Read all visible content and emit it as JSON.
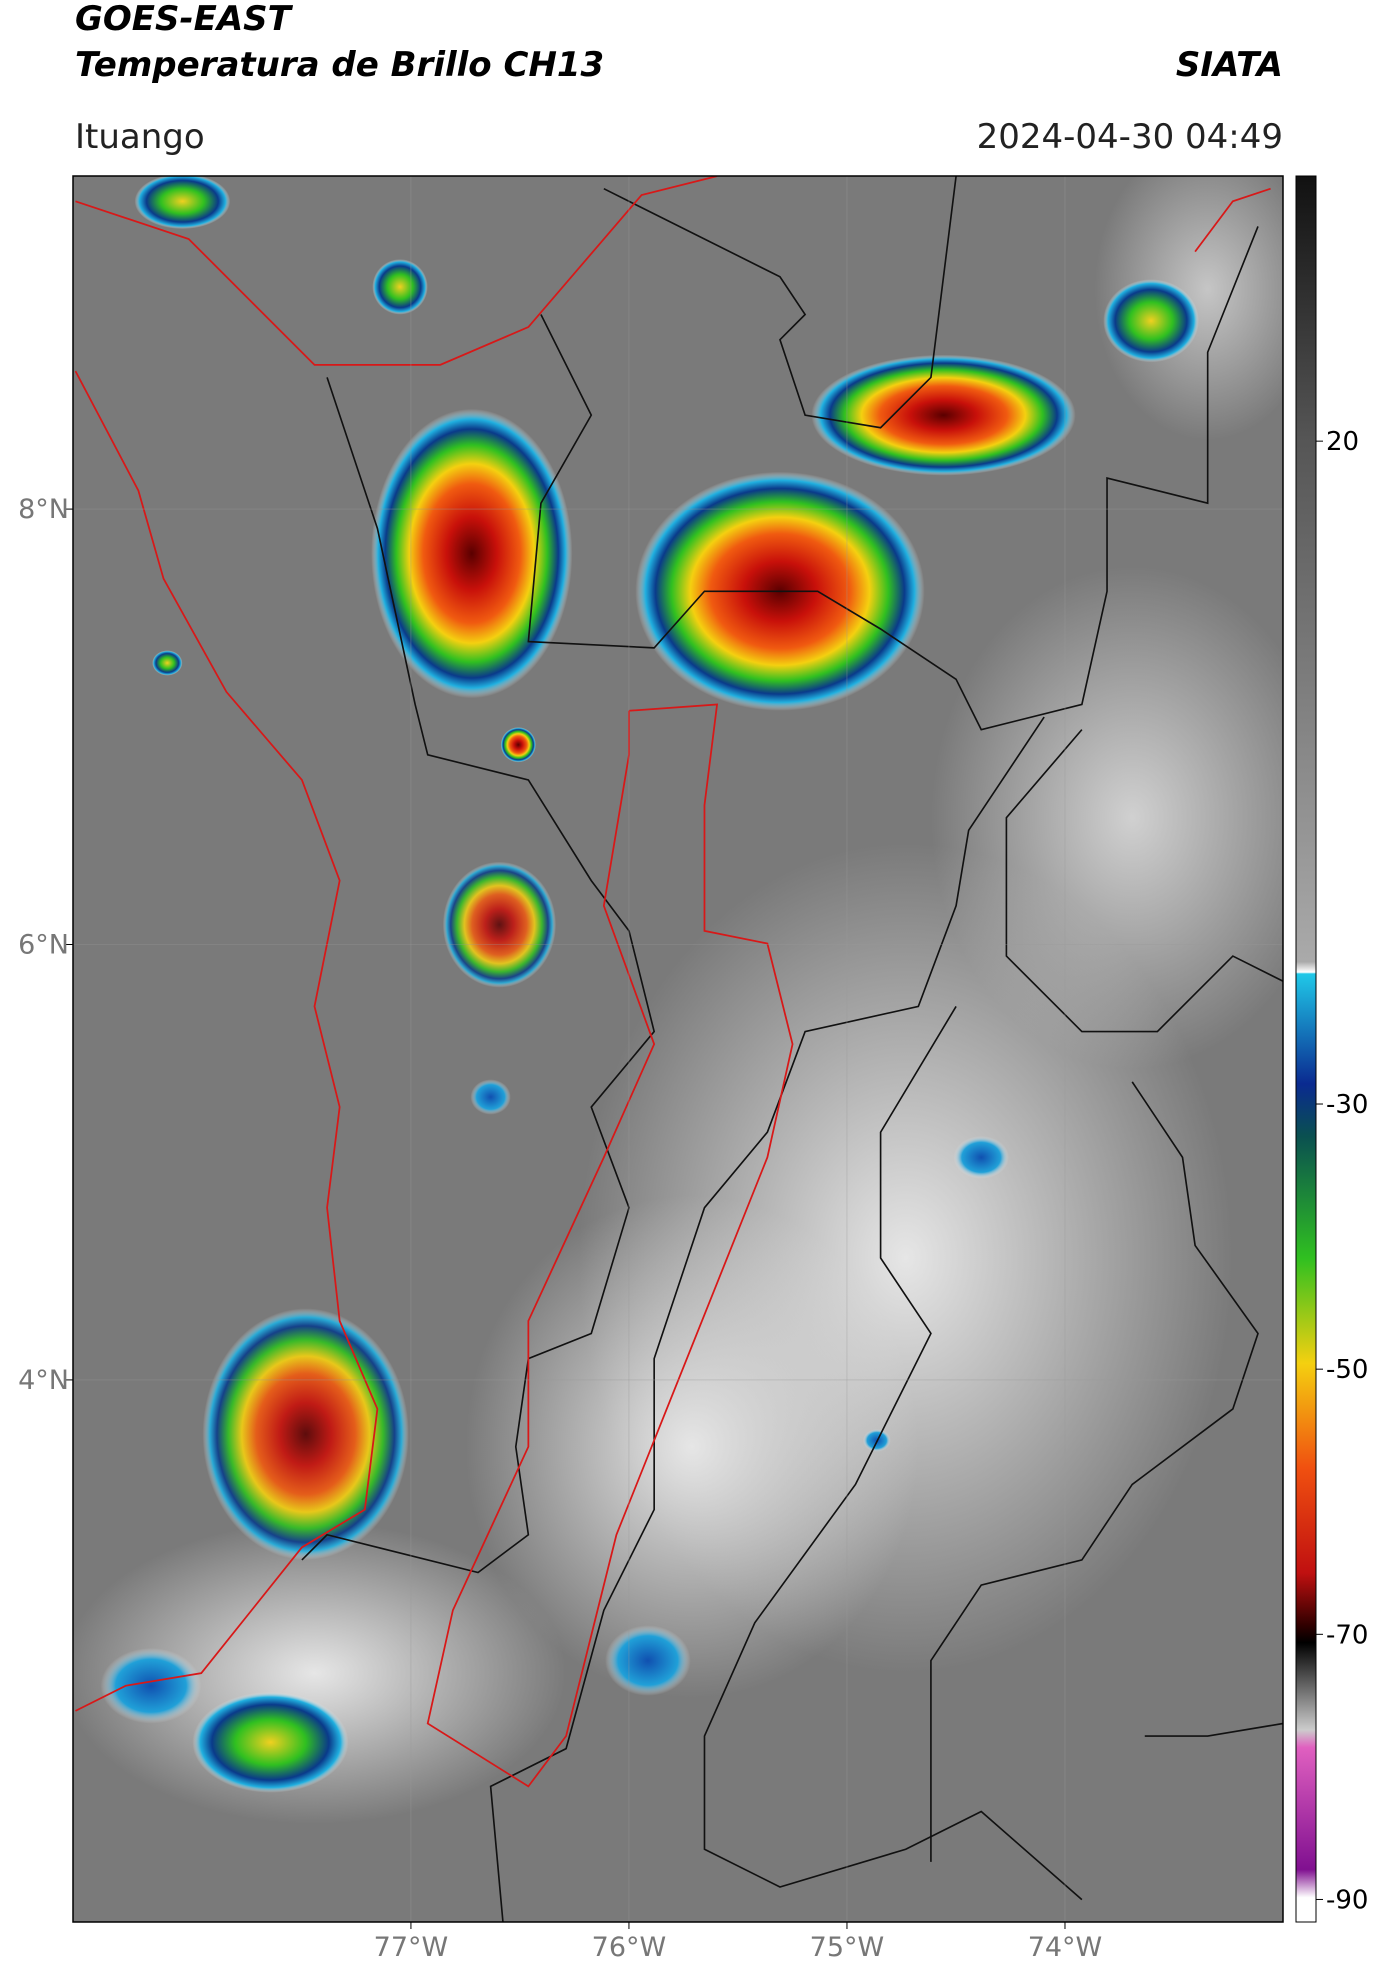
{
  "header": {
    "title": "GOES-EAST",
    "subtitle": "Temperatura de Brillo CH13",
    "source": "SIATA",
    "location": "Ituango",
    "timestamp": "2024-04-30 04:49"
  },
  "map": {
    "lonlim": [
      -78.55,
      -73.0
    ],
    "latlim": [
      1.51,
      9.53
    ],
    "lon_ticks": [
      {
        "value": -77,
        "label": "77°W"
      },
      {
        "value": -76,
        "label": "76°W"
      },
      {
        "value": -75,
        "label": "75°W"
      },
      {
        "value": -74,
        "label": "74°W"
      }
    ],
    "lat_ticks": [
      {
        "value": 8,
        "label": "8°N"
      },
      {
        "value": 6,
        "label": "6°N"
      },
      {
        "value": 4,
        "label": "4°N"
      }
    ]
  },
  "colorbar": {
    "lim": [
      -91.7,
      40
    ],
    "ticks": [
      20,
      -30,
      -50,
      -70,
      -90
    ]
  }
}
